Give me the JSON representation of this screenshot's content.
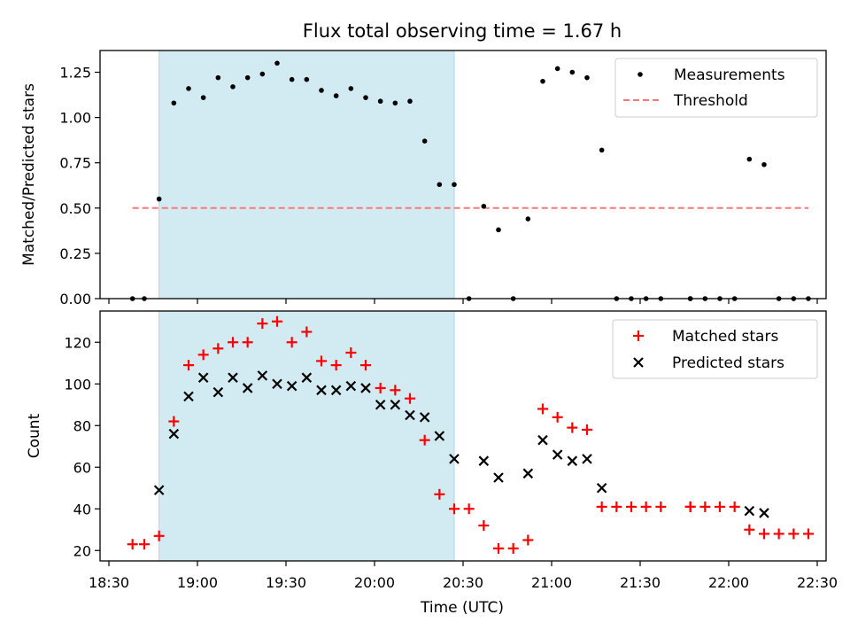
{
  "title": "Flux total observing time = 1.67 h",
  "colors": {
    "observing_span": "#add8e6",
    "threshold": "#ff7777",
    "matched": "#ff0000",
    "predicted": "#000000",
    "measurements": "#000000"
  },
  "xlabel": "Time (UTC)",
  "x_ticks": [
    "18:30",
    "19:00",
    "19:30",
    "20:00",
    "20:30",
    "21:00",
    "21:30",
    "22:00",
    "22:30"
  ],
  "chart_data": [
    {
      "type": "scatter",
      "ylabel": "Matched/Predicted stars",
      "xlim": [
        "18:27",
        "22:33"
      ],
      "ylim": [
        0,
        1.37
      ],
      "y_ticks": [
        "0.00",
        "0.25",
        "0.50",
        "0.75",
        "1.00",
        "1.25"
      ],
      "grid": false,
      "legend_position": "top-right",
      "shaded_interval": [
        "18:47",
        "20:27"
      ],
      "threshold": {
        "name": "Threshold",
        "y": 0.5,
        "x_range": [
          "18:38",
          "22:27"
        ],
        "style": "dashed"
      },
      "series": [
        {
          "name": "Measurements",
          "marker": "dot",
          "x": [
            "18:38",
            "18:42",
            "18:47",
            "18:52",
            "18:57",
            "19:02",
            "19:07",
            "19:12",
            "19:17",
            "19:22",
            "19:27",
            "19:32",
            "19:37",
            "19:42",
            "19:47",
            "19:52",
            "19:57",
            "20:02",
            "20:07",
            "20:12",
            "20:17",
            "20:22",
            "20:27",
            "20:32",
            "20:37",
            "20:42",
            "20:47",
            "20:52",
            "20:57",
            "21:02",
            "21:07",
            "21:12",
            "21:17",
            "21:22",
            "21:27",
            "21:32",
            "21:37",
            "21:47",
            "21:47",
            "21:52",
            "21:57",
            "22:02",
            "22:07",
            "22:12",
            "22:17",
            "22:22",
            "22:27"
          ],
          "y": [
            0,
            0,
            0.55,
            1.08,
            1.16,
            1.11,
            1.22,
            1.17,
            1.22,
            1.24,
            1.3,
            1.21,
            1.21,
            1.15,
            1.12,
            1.16,
            1.11,
            1.09,
            1.08,
            1.09,
            0.87,
            0.63,
            0.63,
            0,
            0.51,
            0.38,
            0,
            0.44,
            1.2,
            1.27,
            1.25,
            1.22,
            0.82,
            0,
            0,
            0,
            0,
            0,
            0,
            0,
            0,
            0,
            0.77,
            0.74,
            0,
            0,
            0
          ]
        }
      ]
    },
    {
      "type": "scatter",
      "ylabel": "Count",
      "xlim": [
        "18:27",
        "22:33"
      ],
      "ylim": [
        15,
        135
      ],
      "y_ticks": [
        "20",
        "40",
        "60",
        "80",
        "100",
        "120"
      ],
      "grid": false,
      "legend_position": "top-right",
      "shaded_interval": [
        "18:47",
        "20:27"
      ],
      "series": [
        {
          "name": "Matched stars",
          "marker": "plus",
          "x": [
            "18:38",
            "18:42",
            "18:47",
            "18:52",
            "18:57",
            "19:02",
            "19:07",
            "19:12",
            "19:17",
            "19:22",
            "19:27",
            "19:32",
            "19:37",
            "19:42",
            "19:47",
            "19:52",
            "19:57",
            "20:02",
            "20:07",
            "20:12",
            "20:17",
            "20:22",
            "20:27",
            "20:32",
            "20:37",
            "20:42",
            "20:47",
            "20:52",
            "20:57",
            "21:02",
            "21:07",
            "21:12",
            "21:17",
            "21:22",
            "21:27",
            "21:32",
            "21:37",
            "21:47",
            "21:47",
            "21:52",
            "21:57",
            "22:02",
            "22:07",
            "22:12",
            "22:17",
            "22:22",
            "22:27"
          ],
          "y": [
            23,
            23,
            27,
            82,
            109,
            114,
            117,
            120,
            120,
            129,
            130,
            120,
            125,
            111,
            109,
            115,
            109,
            98,
            97,
            93,
            73,
            47,
            40,
            40,
            32,
            21,
            21,
            25,
            88,
            84,
            79,
            78,
            41,
            41,
            41,
            41,
            41,
            41,
            41,
            41,
            41,
            41,
            30,
            28,
            28,
            28,
            28
          ]
        },
        {
          "name": "Predicted stars",
          "marker": "x",
          "x": [
            "18:47",
            "18:52",
            "18:57",
            "19:02",
            "19:07",
            "19:12",
            "19:17",
            "19:22",
            "19:27",
            "19:32",
            "19:37",
            "19:42",
            "19:47",
            "19:52",
            "19:57",
            "20:02",
            "20:07",
            "20:12",
            "20:17",
            "20:22",
            "20:27",
            "20:37",
            "20:42",
            "20:52",
            "20:57",
            "21:02",
            "21:07",
            "21:12",
            "21:17",
            "22:07",
            "22:12"
          ],
          "y": [
            49,
            76,
            94,
            103,
            96,
            103,
            98,
            104,
            100,
            99,
            103,
            97,
            97,
            99,
            98,
            90,
            90,
            85,
            84,
            75,
            64,
            63,
            55,
            57,
            73,
            66,
            63,
            64,
            50,
            39,
            38
          ]
        }
      ]
    }
  ]
}
